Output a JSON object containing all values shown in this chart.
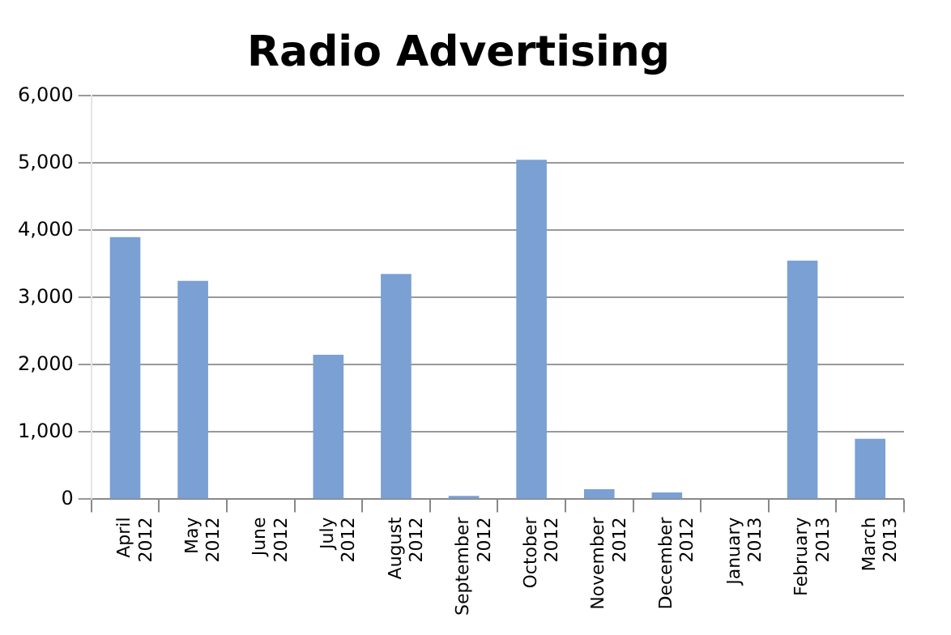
{
  "chart_data": {
    "type": "bar",
    "title": "Radio Advertising",
    "categories": [
      "April 2012",
      "May 2012",
      "June 2012",
      "July 2012",
      "August 2012",
      "September 2012",
      "October 2012",
      "November 2012",
      "December 2012",
      "January 2013",
      "February 2013",
      "March 2013"
    ],
    "values": [
      3900,
      3250,
      0,
      2150,
      3350,
      50,
      5050,
      150,
      100,
      0,
      3550,
      900
    ],
    "color": "#7aa0d4",
    "ylim": [
      0,
      6000
    ],
    "yticks": [
      {
        "value": 0,
        "label": "0"
      },
      {
        "value": 1000,
        "label": "1,000"
      },
      {
        "value": 2000,
        "label": "2,000"
      },
      {
        "value": 3000,
        "label": "3,000"
      },
      {
        "value": 4000,
        "label": "4,000"
      },
      {
        "value": 5000,
        "label": "5,000"
      },
      {
        "value": 6000,
        "label": "6,000"
      }
    ],
    "grid": "y"
  }
}
